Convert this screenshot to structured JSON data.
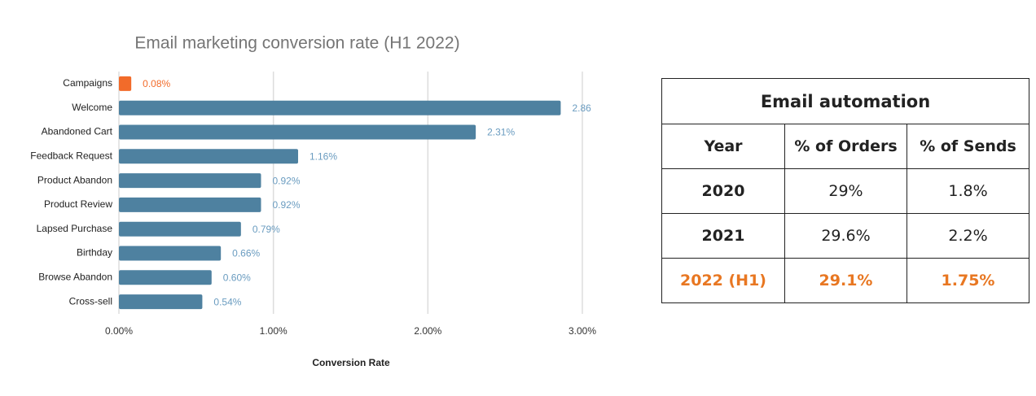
{
  "chart_data": {
    "type": "hbar",
    "title": "Email marketing conversion rate (H1 2022)",
    "categories": [
      "Campaigns",
      "Welcome",
      "Abandoned Cart",
      "Feedback Request",
      "Product Abandon",
      "Product Review",
      "Lapsed Purchase",
      "Birthday",
      "Browse Abandon",
      "Cross-sell"
    ],
    "values": [
      0.08,
      2.86,
      2.31,
      1.16,
      0.92,
      0.92,
      0.79,
      0.66,
      0.6,
      0.54
    ],
    "value_labels": [
      "0.08%",
      "2.86",
      "2.31%",
      "1.16%",
      "0.92%",
      "0.92%",
      "0.79%",
      "0.66%",
      "0.60%",
      "0.54%"
    ],
    "colors": [
      "#f26b2a",
      "#4e81a0",
      "#4e81a0",
      "#4e81a0",
      "#4e81a0",
      "#4e81a0",
      "#4e81a0",
      "#4e81a0",
      "#4e81a0",
      "#4e81a0"
    ],
    "label_colors": [
      "#f26b2a",
      "#6a9cc0",
      "#6a9cc0",
      "#6a9cc0",
      "#6a9cc0",
      "#6a9cc0",
      "#6a9cc0",
      "#6a9cc0",
      "#6a9cc0",
      "#6a9cc0"
    ],
    "xlim": [
      0,
      3
    ],
    "xticks": [
      {
        "value": 0,
        "label": "0.00%"
      },
      {
        "value": 1,
        "label": "1.00%"
      },
      {
        "value": 2,
        "label": "2.00%"
      },
      {
        "value": 3,
        "label": "3.00%"
      }
    ],
    "x_label": "Conversion Rate",
    "grid": true
  },
  "table": {
    "title": "Email automation",
    "header": [
      "Year",
      "% of Orders",
      "% of Sends"
    ],
    "rows": [
      [
        "2020",
        "29%",
        "1.8%"
      ],
      [
        "2021",
        "29.6%",
        "2.2%"
      ],
      [
        "2022 (H1)",
        "29.1%",
        "1.75%"
      ]
    ]
  }
}
